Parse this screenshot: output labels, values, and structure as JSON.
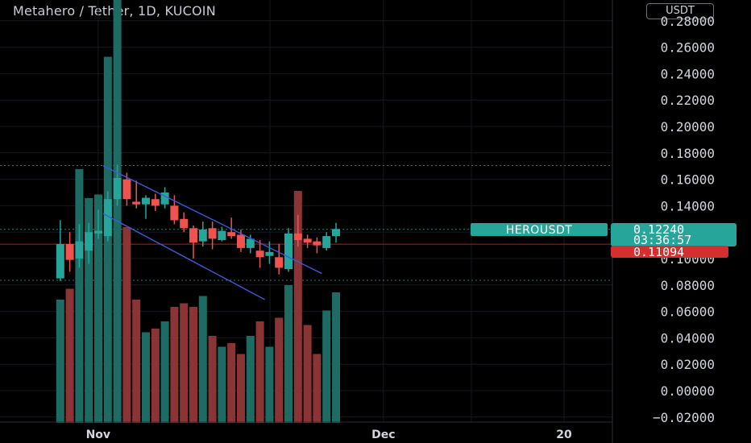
{
  "header": {
    "title": "Metahero / Tether, 1D, KUCOIN",
    "currency": "USDT"
  },
  "colors": {
    "up": "#26a69a",
    "down": "#ef5350",
    "up_volume": "#1e6b63",
    "down_volume": "#8b3436",
    "trendline": "#3b5bdb",
    "last_price": "#26a69a",
    "crosshair_price": "#d32f2f"
  },
  "chart_data": {
    "type": "candlestick",
    "symbol": "HEROUSDT",
    "y_ticks": [
      "0.28000",
      "0.26000",
      "0.24000",
      "0.22000",
      "0.20000",
      "0.18000",
      "0.16000",
      "0.14000",
      "0.12000",
      "0.10000",
      "0.08000",
      "0.06000",
      "0.04000",
      "0.02000",
      "0.00000",
      "−0.02000"
    ],
    "ylim": [
      -0.02,
      0.28
    ],
    "x_ticks": [
      {
        "label": "Nov",
        "day": 1
      },
      {
        "label": "Dec",
        "day": 31
      },
      {
        "label": "20",
        "day": 50
      }
    ],
    "last_price": "0.12240",
    "countdown": "03:36:57",
    "crosshair_price": "0.11094",
    "crosshair_value": 0.1109,
    "dotted_levels": [
      0.1704,
      0.1221,
      0.0835
    ],
    "channel": {
      "upper": [
        {
          "day": 0.5,
          "value": 0.1703
        },
        {
          "day": 23.5,
          "value": 0.0887
        }
      ],
      "lower": [
        {
          "day": 0.5,
          "value": 0.134
        },
        {
          "day": 17.5,
          "value": 0.069
        }
      ]
    },
    "candles": [
      {
        "day": -4,
        "open": 0.085,
        "high": 0.129,
        "low": 0.083,
        "close": 0.111,
        "volume": 0.034
      },
      {
        "day": -3,
        "open": 0.111,
        "high": 0.12,
        "low": 0.09,
        "close": 0.099,
        "volume": 0.037
      },
      {
        "day": -2,
        "open": 0.1,
        "high": 0.126,
        "low": 0.093,
        "close": 0.113,
        "volume": 0.07
      },
      {
        "day": -1,
        "open": 0.106,
        "high": 0.127,
        "low": 0.096,
        "close": 0.12,
        "volume": 0.062
      },
      {
        "day": 0,
        "open": 0.119,
        "high": 0.137,
        "low": 0.115,
        "close": 0.121,
        "volume": 0.063
      },
      {
        "day": 1,
        "open": 0.117,
        "high": 0.151,
        "low": 0.113,
        "close": 0.145,
        "volume": 0.101
      },
      {
        "day": 2,
        "open": 0.145,
        "high": 0.171,
        "low": 0.14,
        "close": 0.161,
        "volume": 0.119
      },
      {
        "day": 3,
        "open": 0.16,
        "high": 0.165,
        "low": 0.14,
        "close": 0.145,
        "volume": 0.054
      },
      {
        "day": 4,
        "open": 0.143,
        "high": 0.159,
        "low": 0.138,
        "close": 0.141,
        "volume": 0.034
      },
      {
        "day": 5,
        "open": 0.141,
        "high": 0.148,
        "low": 0.13,
        "close": 0.146,
        "volume": 0.025
      },
      {
        "day": 6,
        "open": 0.145,
        "high": 0.149,
        "low": 0.136,
        "close": 0.14,
        "volume": 0.026
      },
      {
        "day": 7,
        "open": 0.141,
        "high": 0.154,
        "low": 0.138,
        "close": 0.15,
        "volume": 0.028
      },
      {
        "day": 8,
        "open": 0.14,
        "high": 0.148,
        "low": 0.126,
        "close": 0.129,
        "volume": 0.032
      },
      {
        "day": 9,
        "open": 0.13,
        "high": 0.135,
        "low": 0.12,
        "close": 0.123,
        "volume": 0.033
      },
      {
        "day": 10,
        "open": 0.123,
        "high": 0.125,
        "low": 0.1,
        "close": 0.112,
        "volume": 0.032
      },
      {
        "day": 11,
        "open": 0.113,
        "high": 0.128,
        "low": 0.109,
        "close": 0.122,
        "volume": 0.035
      },
      {
        "day": 12,
        "open": 0.123,
        "high": 0.128,
        "low": 0.107,
        "close": 0.115,
        "volume": 0.024
      },
      {
        "day": 13,
        "open": 0.114,
        "high": 0.124,
        "low": 0.113,
        "close": 0.121,
        "volume": 0.021
      },
      {
        "day": 14,
        "open": 0.12,
        "high": 0.131,
        "low": 0.115,
        "close": 0.117,
        "volume": 0.022
      },
      {
        "day": 15,
        "open": 0.118,
        "high": 0.122,
        "low": 0.105,
        "close": 0.108,
        "volume": 0.019
      },
      {
        "day": 16,
        "open": 0.108,
        "high": 0.118,
        "low": 0.104,
        "close": 0.115,
        "volume": 0.024
      },
      {
        "day": 17,
        "open": 0.106,
        "high": 0.114,
        "low": 0.093,
        "close": 0.101,
        "volume": 0.028
      },
      {
        "day": 18,
        "open": 0.102,
        "high": 0.113,
        "low": 0.096,
        "close": 0.105,
        "volume": 0.021
      },
      {
        "day": 19,
        "open": 0.101,
        "high": 0.111,
        "low": 0.088,
        "close": 0.093,
        "volume": 0.029
      },
      {
        "day": 20,
        "open": 0.092,
        "high": 0.123,
        "low": 0.09,
        "close": 0.119,
        "volume": 0.038
      },
      {
        "day": 21,
        "open": 0.119,
        "high": 0.133,
        "low": 0.109,
        "close": 0.114,
        "volume": 0.064
      },
      {
        "day": 22,
        "open": 0.115,
        "high": 0.118,
        "low": 0.108,
        "close": 0.112,
        "volume": 0.027
      },
      {
        "day": 23,
        "open": 0.113,
        "high": 0.116,
        "low": 0.104,
        "close": 0.11,
        "volume": 0.019
      },
      {
        "day": 24,
        "open": 0.108,
        "high": 0.12,
        "low": 0.106,
        "close": 0.117,
        "volume": 0.031
      },
      {
        "day": 25,
        "open": 0.117,
        "high": 0.127,
        "low": 0.112,
        "close": 0.1224,
        "volume": 0.036
      }
    ]
  }
}
